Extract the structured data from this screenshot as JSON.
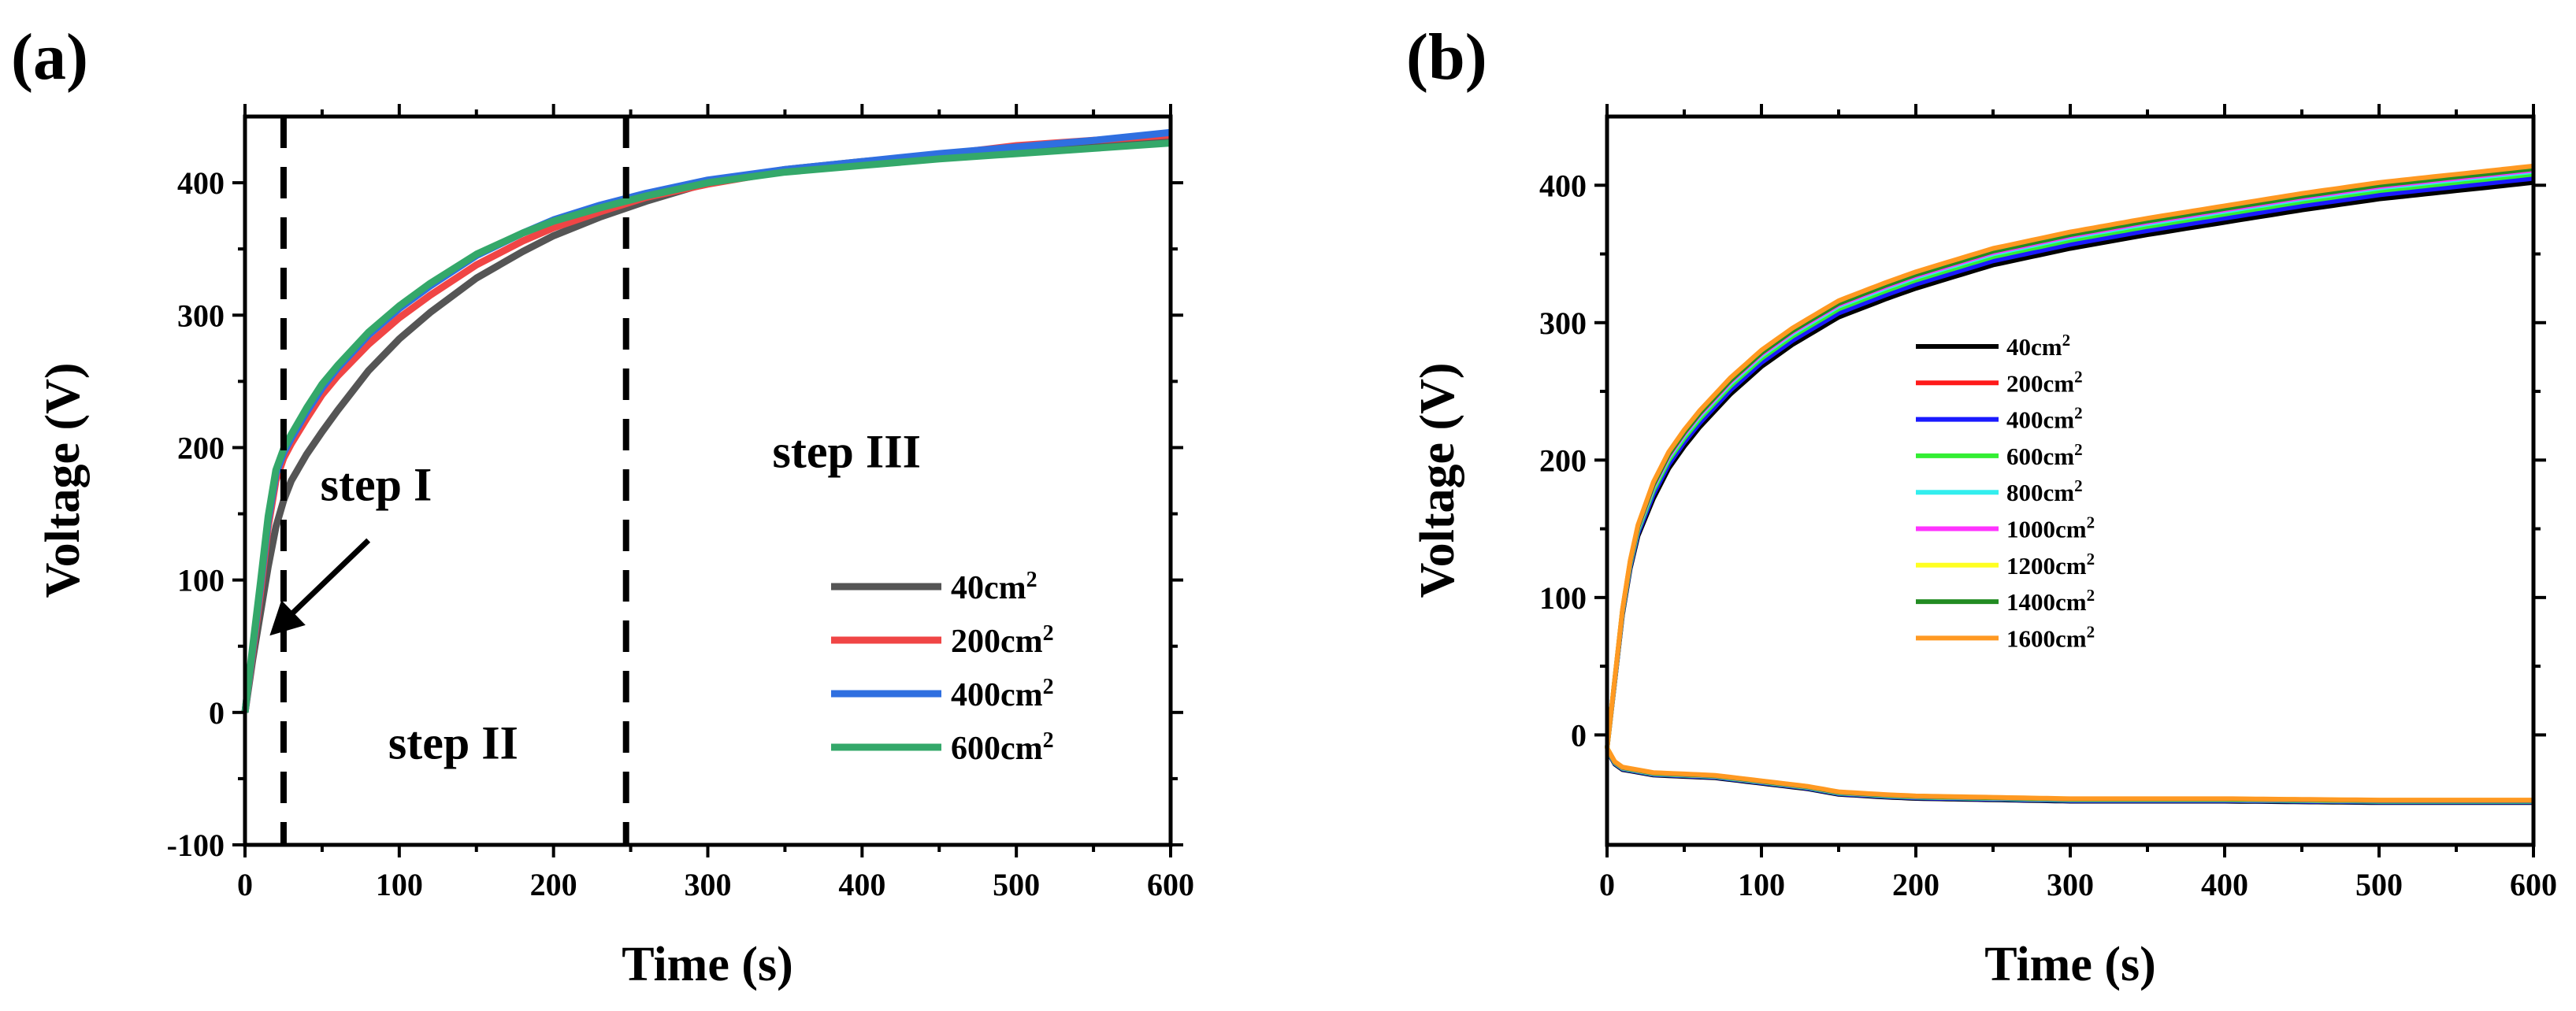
{
  "chart_data": [
    {
      "type": "line",
      "panel_label": "(a)",
      "xlabel": "Time (s)",
      "ylabel": "Voltage (V)",
      "xlim": [
        0,
        600
      ],
      "ylim": [
        -100,
        450
      ],
      "xticks": [
        0,
        100,
        200,
        300,
        400,
        500,
        600
      ],
      "yticks": [
        -100,
        0,
        100,
        200,
        300,
        400
      ],
      "legend_position": "bottom-right",
      "vlines": [
        25,
        247
      ],
      "annotations": [
        {
          "text": "step I",
          "x": 85,
          "y": 160
        },
        {
          "text": "step II",
          "x": 135,
          "y": -35
        },
        {
          "text": "step III",
          "x": 390,
          "y": 185
        },
        {
          "text": "step III",
          "x": 390,
          "y": 185
        }
      ],
      "arrow": {
        "from": [
          80,
          130
        ],
        "to": [
          16,
          58
        ]
      },
      "series": [
        {
          "name": "40cm",
          "sup": "2",
          "color": "#555555",
          "x": [
            0,
            5,
            10,
            15,
            20,
            25,
            30,
            40,
            50,
            60,
            80,
            100,
            120,
            150,
            180,
            200,
            230,
            260,
            300,
            350,
            400,
            450,
            500,
            550,
            600
          ],
          "values": [
            0,
            40,
            75,
            110,
            140,
            160,
            175,
            195,
            212,
            228,
            258,
            282,
            302,
            328,
            348,
            360,
            374,
            386,
            400,
            410,
            416,
            421,
            425,
            428,
            432
          ]
        },
        {
          "name": "200cm",
          "sup": "2",
          "color": "#f04545",
          "x": [
            0,
            5,
            10,
            15,
            20,
            25,
            30,
            40,
            50,
            60,
            80,
            100,
            120,
            150,
            180,
            200,
            230,
            260,
            300,
            350,
            400,
            450,
            500,
            550,
            600
          ],
          "values": [
            0,
            45,
            90,
            140,
            175,
            192,
            203,
            222,
            240,
            254,
            278,
            298,
            315,
            338,
            356,
            366,
            378,
            389,
            399,
            409,
            415,
            421,
            428,
            432,
            436
          ]
        },
        {
          "name": "400cm",
          "sup": "2",
          "color": "#2f6fe0",
          "x": [
            0,
            5,
            10,
            15,
            20,
            25,
            30,
            40,
            50,
            60,
            80,
            100,
            120,
            150,
            180,
            200,
            230,
            260,
            300,
            350,
            400,
            450,
            500,
            550,
            600
          ],
          "values": [
            0,
            48,
            95,
            145,
            180,
            196,
            207,
            227,
            245,
            260,
            285,
            305,
            322,
            345,
            362,
            372,
            383,
            392,
            402,
            410,
            416,
            422,
            427,
            432,
            438
          ]
        },
        {
          "name": "600cm",
          "sup": "2",
          "color": "#34a86a",
          "x": [
            0,
            5,
            10,
            15,
            20,
            25,
            30,
            40,
            50,
            60,
            80,
            100,
            120,
            150,
            180,
            200,
            230,
            260,
            300,
            350,
            400,
            450,
            500,
            550,
            600
          ],
          "values": [
            0,
            50,
            98,
            148,
            183,
            199,
            210,
            230,
            248,
            262,
            287,
            307,
            324,
            346,
            362,
            371,
            381,
            390,
            400,
            408,
            413,
            418,
            422,
            426,
            430
          ]
        }
      ]
    },
    {
      "type": "line",
      "panel_label": "(b)",
      "xlabel": "Time (s)",
      "ylabel": "Voltage (V)",
      "xlim": [
        0,
        600
      ],
      "ylim": [
        -80,
        450
      ],
      "xticks": [
        0,
        100,
        200,
        300,
        400,
        500,
        600
      ],
      "yticks": [
        0,
        100,
        200,
        300,
        400
      ],
      "legend_position": "center-left",
      "series": [
        {
          "name": "40cm",
          "sup": "2",
          "color": "#000000",
          "offset": -8
        },
        {
          "name": "200cm",
          "sup": "2",
          "color": "#ff1a1a",
          "offset": -3
        },
        {
          "name": "400cm",
          "sup": "2",
          "color": "#1a1aff",
          "offset": -5
        },
        {
          "name": "600cm",
          "sup": "2",
          "color": "#33ee33",
          "offset": -2
        },
        {
          "name": "800cm",
          "sup": "2",
          "color": "#33eeee",
          "offset": 0
        },
        {
          "name": "1000cm",
          "sup": "2",
          "color": "#ff33ff",
          "offset": 1
        },
        {
          "name": "1200cm",
          "sup": "2",
          "color": "#ffff22",
          "offset": 3
        },
        {
          "name": "1400cm",
          "sup": "2",
          "color": "#228b22",
          "offset": 2
        },
        {
          "name": "1600cm",
          "sup": "2",
          "color": "#ff9922",
          "offset": 4
        }
      ],
      "upper_curve": {
        "x": [
          0,
          5,
          10,
          15,
          20,
          30,
          40,
          50,
          60,
          80,
          100,
          120,
          150,
          180,
          200,
          250,
          300,
          350,
          400,
          450,
          500,
          550,
          600
        ],
        "values": [
          -10,
          40,
          90,
          125,
          150,
          180,
          202,
          218,
          232,
          256,
          276,
          292,
          312,
          325,
          333,
          350,
          362,
          372,
          381,
          390,
          398,
          404,
          410
        ]
      },
      "lower_curve": {
        "x": [
          0,
          5,
          10,
          20,
          30,
          50,
          70,
          100,
          130,
          150,
          180,
          200,
          250,
          300,
          400,
          500,
          600
        ],
        "values": [
          -10,
          -20,
          -24,
          -26,
          -28,
          -29,
          -30,
          -34,
          -38,
          -42,
          -44,
          -45,
          -46,
          -47,
          -47,
          -48,
          -48
        ]
      }
    }
  ]
}
